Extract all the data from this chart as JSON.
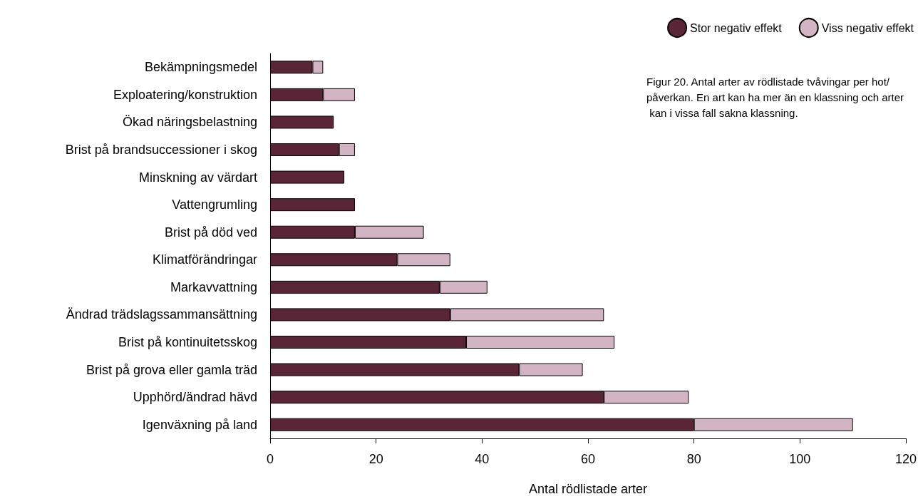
{
  "chart_data": {
    "type": "bar",
    "orientation": "horizontal",
    "stacked": true,
    "title": "Figur 20. Antal arter av rödlistade tvåvingar per hot/påverkan. En art kan ha mer än en klassning och arter kan i vissa fall sakna klassning.",
    "xlabel": "Antal rödlistade arter",
    "categories": [
      "Bekämpningsmedel",
      "Exploatering/konstruktion",
      "Ökad näringsbelastning",
      "Brist på brandsuccessioner i skog",
      "Minskning av värdart",
      "Vattengrumling",
      "Brist på död ved",
      "Klimatförändringar",
      "Markavvattning",
      "Ändrad trädslagssammansättning",
      "Brist på kontinuitetsskog",
      "Brist på grova eller gamla träd",
      "Upphörd/ändrad hävd",
      "Igenväxning på land"
    ],
    "series": [
      {
        "name": "Stor negativ effekt",
        "color": "#5b2538",
        "values": [
          8,
          10,
          12,
          13,
          14,
          16,
          16,
          24,
          32,
          34,
          37,
          47,
          63,
          80
        ]
      },
      {
        "name": "Viss negativ effekt",
        "color": "#d2b4c4",
        "values": [
          2,
          6,
          0,
          3,
          0,
          0,
          13,
          10,
          9,
          29,
          28,
          12,
          16,
          30
        ]
      }
    ],
    "xlim": [
      0,
      120
    ],
    "xticks": [
      0,
      20,
      40,
      60,
      80,
      100,
      120
    ],
    "legend": "top right",
    "grid": false
  }
}
